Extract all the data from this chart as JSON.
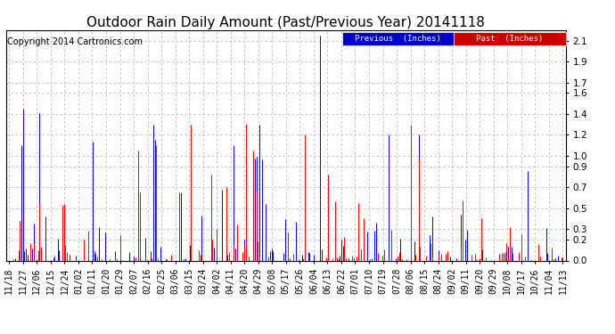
{
  "title": "Outdoor Rain Daily Amount (Past/Previous Year) 20141118",
  "copyright": "Copyright 2014 Cartronics.com",
  "legend_blue_label": "Previous  (Inches)",
  "legend_red_label": "Past  (Inches)",
  "legend_blue_bg": "#0000cc",
  "legend_red_bg": "#cc0000",
  "yticks": [
    0.0,
    0.2,
    0.3,
    0.5,
    0.7,
    0.9,
    1.0,
    1.2,
    1.4,
    1.6,
    1.7,
    1.9,
    2.1
  ],
  "ymax": 2.2,
  "ymin": 0.0,
  "x_labels": [
    "11/18",
    "11/27",
    "12/06",
    "12/15",
    "12/24",
    "01/02",
    "01/11",
    "01/20",
    "01/29",
    "02/07",
    "02/16",
    "02/25",
    "03/06",
    "03/15",
    "03/24",
    "04/02",
    "04/11",
    "04/20",
    "04/29",
    "05/08",
    "05/17",
    "05/26",
    "06/04",
    "06/13",
    "06/22",
    "07/01",
    "07/10",
    "07/19",
    "07/28",
    "08/06",
    "08/15",
    "08/24",
    "09/02",
    "09/11",
    "09/20",
    "09/29",
    "10/08",
    "10/17",
    "10/26",
    "11/04",
    "11/13"
  ],
  "background_color": "#ffffff",
  "grid_color": "#bbbbbb",
  "title_fontsize": 11,
  "copyright_fontsize": 7,
  "axis_fontsize": 7,
  "num_points": 366,
  "blue_color": "#0000ff",
  "red_color": "#ff0000"
}
